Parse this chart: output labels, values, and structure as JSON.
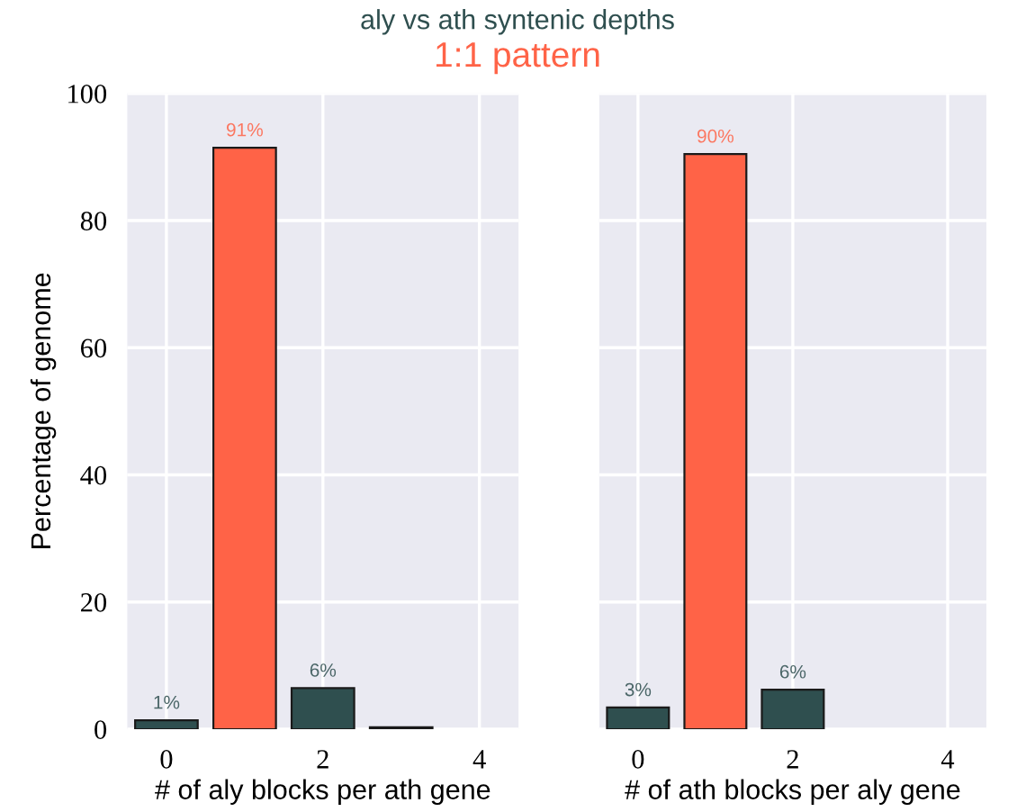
{
  "chart_data": [
    {
      "type": "bar",
      "title": "aly vs ath syntenic depths",
      "subtitle": "1:1 pattern",
      "xlabel": "# of aly blocks per ath gene",
      "ylabel": "Percentage of genome",
      "x": [
        0,
        1,
        2,
        3
      ],
      "values": [
        1.4,
        91.45,
        6.45,
        0.3
      ],
      "colors": [
        "#2f4f4f",
        "#ff6347",
        "#2f4f4f",
        "#2f4f4f"
      ],
      "value_labels": [
        "1%",
        "91%",
        "6%",
        null
      ],
      "xlim": [
        -0.5,
        4.5
      ],
      "xticks": [
        0,
        2,
        4
      ],
      "ylim": [
        0,
        100
      ],
      "yticks": [
        0,
        20,
        40,
        60,
        80,
        100
      ],
      "grid": true
    },
    {
      "type": "bar",
      "xlabel": "# of ath blocks per aly gene",
      "x": [
        0,
        1,
        2
      ],
      "values": [
        3.4,
        90.45,
        6.2
      ],
      "colors": [
        "#2f4f4f",
        "#ff6347",
        "#2f4f4f"
      ],
      "value_labels": [
        "3%",
        "90%",
        "6%"
      ],
      "xlim": [
        -0.5,
        4.5
      ],
      "xticks": [
        0,
        2,
        4
      ],
      "ylim": [
        0,
        100
      ],
      "yticks": [
        0,
        20,
        40,
        60,
        80,
        100
      ],
      "grid": true,
      "tick_labels": "x"
    }
  ]
}
